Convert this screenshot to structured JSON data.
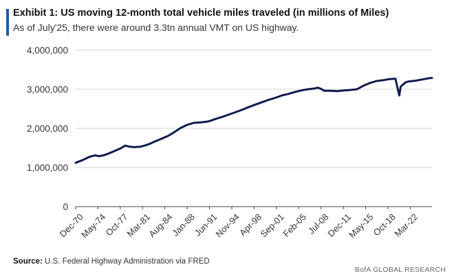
{
  "header": {
    "title": "Exhibit 1: US moving 12-month total vehicle miles traveled (in millions of Miles)",
    "subtitle": "As of July'25, there were around 3.3tn annual VMT on US highway."
  },
  "footer": {
    "source_label": "Source:",
    "source_text": "U.S. Federal Highway Administration via FRED",
    "brand": "BofA GLOBAL RESEARCH"
  },
  "colors": {
    "accent": "#1f5aa6",
    "line": "#0f1c4d",
    "grid": "#c8c8c8"
  },
  "chart_data": {
    "type": "line",
    "title": "Exhibit 1: US moving 12-month total vehicle miles traveled (in millions of Miles)",
    "ylim": [
      0,
      4000000
    ],
    "yticks": [
      0,
      1000000,
      2000000,
      3000000,
      4000000
    ],
    "ytick_labels": [
      "0",
      "1,000,000",
      "2,000,000",
      "3,000,000",
      "4,000,000"
    ],
    "xtick_labels": [
      "Dec-70",
      "May-74",
      "Oct-77",
      "Mar-81",
      "Aug-84",
      "Jan-88",
      "Jun-91",
      "Nov-94",
      "Apr-98",
      "Sep-01",
      "Feb-05",
      "Jul-08",
      "Dec-11",
      "May-15",
      "Oct-18",
      "Mar-22"
    ],
    "xtick_years": [
      1970.92,
      1974.33,
      1977.75,
      1981.17,
      1984.58,
      1988.0,
      1991.42,
      1994.83,
      1998.25,
      2001.67,
      2005.08,
      2008.5,
      2011.92,
      2015.33,
      2018.75,
      2022.17
    ],
    "xlim": [
      1970.92,
      2025.5
    ],
    "grid": true,
    "legend": "none",
    "series": [
      {
        "x": [
          1970.92,
          1972.0,
          1973.0,
          1973.9,
          1974.5,
          1975.2,
          1976.0,
          1977.0,
          1977.8,
          1978.5,
          1979.2,
          1980.0,
          1980.8,
          1981.5,
          1982.2,
          1983.0,
          1984.0,
          1985.0,
          1986.0,
          1987.0,
          1988.0,
          1989.0,
          1990.0,
          1991.0,
          1991.5,
          1992.5,
          1993.5,
          1994.5,
          1995.5,
          1996.5,
          1997.5,
          1998.5,
          1999.5,
          2000.5,
          2001.5,
          2002.5,
          2003.5,
          2004.5,
          2005.5,
          2006.5,
          2007.5,
          2008.0,
          2008.5,
          2009.0,
          2010.0,
          2011.0,
          2011.5,
          2012.0,
          2013.0,
          2014.0,
          2015.0,
          2016.0,
          2017.0,
          2018.0,
          2019.0,
          2019.9,
          2020.2,
          2020.5,
          2020.7,
          2021.0,
          2021.5,
          2022.0,
          2023.0,
          2024.0,
          2025.0,
          2025.5
        ],
        "y": [
          1120000,
          1190000,
          1270000,
          1310000,
          1290000,
          1310000,
          1360000,
          1430000,
          1490000,
          1560000,
          1530000,
          1520000,
          1530000,
          1560000,
          1600000,
          1660000,
          1730000,
          1800000,
          1900000,
          2010000,
          2090000,
          2140000,
          2150000,
          2170000,
          2190000,
          2250000,
          2300000,
          2360000,
          2420000,
          2480000,
          2550000,
          2610000,
          2670000,
          2730000,
          2780000,
          2840000,
          2880000,
          2930000,
          2970000,
          3000000,
          3020000,
          3040000,
          3010000,
          2960000,
          2960000,
          2950000,
          2960000,
          2970000,
          2980000,
          3000000,
          3090000,
          3160000,
          3210000,
          3230000,
          3260000,
          3270000,
          3050000,
          2840000,
          3060000,
          3110000,
          3180000,
          3200000,
          3220000,
          3250000,
          3280000,
          3290000
        ]
      }
    ]
  }
}
